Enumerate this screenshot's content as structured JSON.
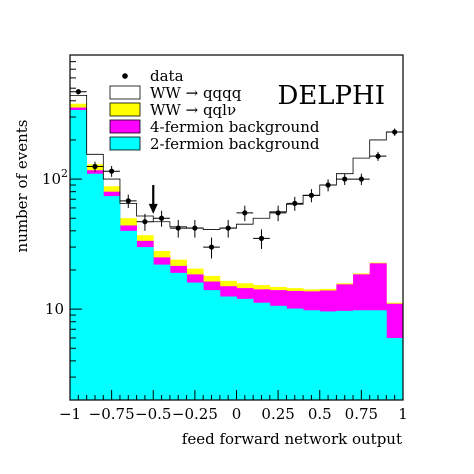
{
  "chart_data": {
    "type": "histogram",
    "tag": "DELPHI",
    "xlabel": "feed forward network output",
    "ylabel": "number of events",
    "x_range": [
      -1,
      1
    ],
    "y_scale": "log",
    "y_range": [
      2,
      900
    ],
    "x_ticks": [
      {
        "value": -1,
        "label": "−1"
      },
      {
        "value": -0.75,
        "label": "−0.75"
      },
      {
        "value": -0.5,
        "label": "−0.5"
      },
      {
        "value": -0.25,
        "label": "−0.25"
      },
      {
        "value": 0,
        "label": "0"
      },
      {
        "value": 0.25,
        "label": "0.25"
      },
      {
        "value": 0.5,
        "label": "0.5"
      },
      {
        "value": 0.75,
        "label": "0.75"
      },
      {
        "value": 1,
        "label": "1"
      }
    ],
    "y_ticks": [
      {
        "value": 10,
        "label": "10",
        "exp": ""
      },
      {
        "value": 100,
        "label": "10",
        "exp": "2"
      }
    ],
    "bin_edges": [
      -1,
      -0.9,
      -0.8,
      -0.7,
      -0.6,
      -0.5,
      -0.4,
      -0.3,
      -0.2,
      -0.1,
      0,
      0.1,
      0.2,
      0.3,
      0.4,
      0.5,
      0.6,
      0.7,
      0.8,
      0.9,
      1.0
    ],
    "stack": [
      {
        "name": "2-fermion background",
        "color": "#00FFFF",
        "values": [
          340,
          110,
          74,
          40,
          30,
          22,
          19,
          16,
          14,
          12.5,
          12,
          11.2,
          10.6,
          10.1,
          9.8,
          9.6,
          9.7,
          9.8,
          9.8,
          6.0
        ]
      },
      {
        "name": "4-fermion background",
        "color": "#FF00FF",
        "values": [
          355,
          117,
          80,
          44,
          33.5,
          25,
          21.5,
          18.5,
          16.3,
          15,
          14.5,
          14.2,
          14,
          13.8,
          13.7,
          13.9,
          15.5,
          18.5,
          22.5,
          11
        ]
      },
      {
        "name": "WW → qqlv",
        "color": "#FFFF00",
        "values": [
          380,
          130,
          88,
          50,
          37,
          28,
          24,
          20.5,
          18,
          16.5,
          15.8,
          15.3,
          14.8,
          14.5,
          14.2,
          14.3,
          15.8,
          18.8,
          22.8,
          11.2
        ]
      },
      {
        "name": "WW → qqqq",
        "color": "#FFFFFF",
        "values": [
          440,
          155,
          100,
          65,
          52,
          47,
          43,
          42,
          41,
          42,
          45,
          50,
          56,
          64,
          75,
          90,
          110,
          145,
          200,
          230
        ]
      }
    ],
    "data_points": {
      "name": "data",
      "x": [
        -0.95,
        -0.85,
        -0.75,
        -0.65,
        -0.55,
        -0.45,
        -0.35,
        -0.25,
        -0.15,
        -0.05,
        0.05,
        0.15,
        0.25,
        0.35,
        0.45,
        0.55,
        0.65,
        0.75,
        0.85,
        0.95
      ],
      "y": [
        470,
        125,
        115,
        68,
        47,
        50,
        42,
        42,
        30,
        42,
        55,
        35,
        55,
        65,
        75,
        90,
        100,
        100,
        150,
        230
      ],
      "err": [
        22,
        11,
        11,
        8,
        7,
        7,
        6.5,
        6.5,
        5.5,
        6.5,
        7.5,
        6,
        7.5,
        8,
        8.7,
        9.5,
        10,
        10,
        12,
        15
      ]
    },
    "annotation": {
      "type": "arrow",
      "x": -0.5,
      "y_from": 90,
      "y_to": 55
    },
    "legend": {
      "position": "top-left",
      "entries": [
        {
          "label": "data",
          "marker": "dot"
        },
        {
          "label": "WW → qqqq",
          "color": "#FFFFFF"
        },
        {
          "label": "WW → qqlν",
          "color": "#FFFF00"
        },
        {
          "label": "4-fermion background",
          "color": "#FF00FF"
        },
        {
          "label": "2-fermion background",
          "color": "#00FFFF"
        }
      ]
    }
  }
}
